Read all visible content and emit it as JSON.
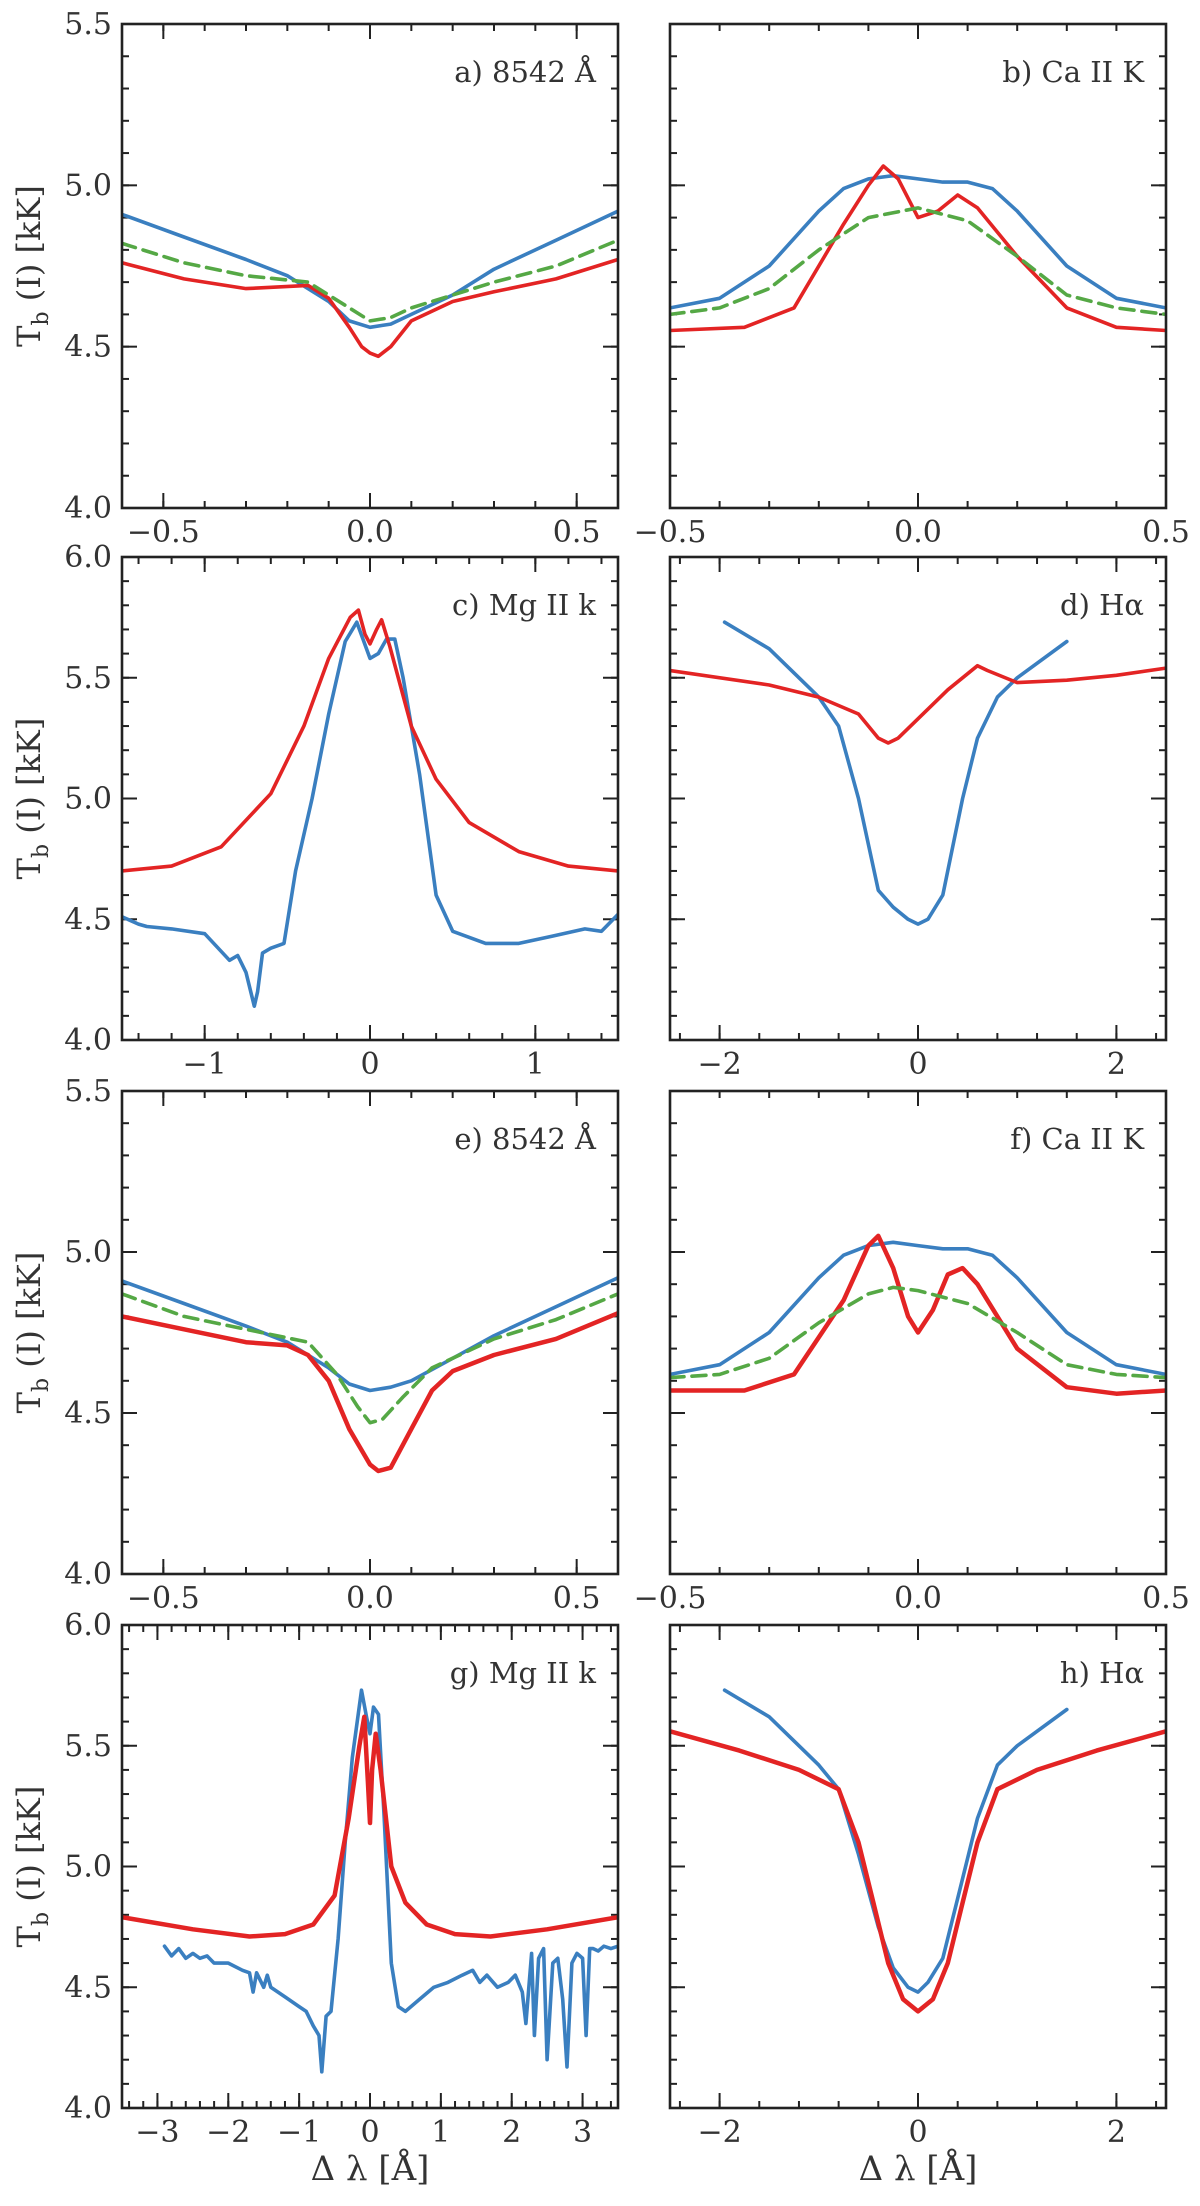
{
  "figure": {
    "y_label": [
      "T",
      "b",
      " (I) [kK]"
    ],
    "x_label": "Δ λ [Å]"
  },
  "colors": {
    "blue": "#3a7fc0",
    "red": "#e32424",
    "green": "#55a845"
  },
  "chart_data": [
    {
      "id": "a",
      "title": "a) 8542 Å",
      "type": "line",
      "xlim": [
        -0.6,
        0.6
      ],
      "ylim": [
        4.0,
        5.5
      ],
      "xticks": [
        -0.5,
        0.0,
        0.5
      ],
      "yticks": [
        4.0,
        4.5,
        5.0,
        5.5
      ],
      "x_tick_labels_shown": true,
      "y_tick_labels_shown": true,
      "series": [
        {
          "color": "blue",
          "dash": false,
          "x": [
            -0.6,
            -0.45,
            -0.3,
            -0.2,
            -0.1,
            -0.05,
            0.0,
            0.05,
            0.1,
            0.2,
            0.3,
            0.45,
            0.6
          ],
          "y": [
            4.91,
            4.84,
            4.77,
            4.72,
            4.64,
            4.58,
            4.56,
            4.57,
            4.6,
            4.66,
            4.74,
            4.83,
            4.92
          ]
        },
        {
          "color": "red",
          "dash": false,
          "x": [
            -0.6,
            -0.45,
            -0.3,
            -0.15,
            -0.1,
            -0.05,
            -0.02,
            0.0,
            0.02,
            0.05,
            0.1,
            0.2,
            0.3,
            0.45,
            0.6
          ],
          "y": [
            4.76,
            4.71,
            4.68,
            4.69,
            4.65,
            4.56,
            4.5,
            4.48,
            4.47,
            4.5,
            4.58,
            4.64,
            4.67,
            4.71,
            4.77
          ]
        },
        {
          "color": "green",
          "dash": true,
          "x": [
            -0.6,
            -0.45,
            -0.3,
            -0.15,
            -0.05,
            0.0,
            0.05,
            0.1,
            0.2,
            0.3,
            0.45,
            0.6
          ],
          "y": [
            4.82,
            4.76,
            4.72,
            4.7,
            4.62,
            4.58,
            4.59,
            4.62,
            4.66,
            4.7,
            4.75,
            4.83
          ]
        }
      ]
    },
    {
      "id": "b",
      "title": "b) Ca II K",
      "type": "line",
      "xlim": [
        -0.5,
        0.5
      ],
      "ylim": [
        4.0,
        5.5
      ],
      "xticks": [
        -0.5,
        0.0,
        0.5
      ],
      "yticks": [
        4.0,
        4.5,
        5.0,
        5.5
      ],
      "x_tick_labels_shown": true,
      "y_tick_labels_shown": false,
      "series": [
        {
          "color": "blue",
          "dash": false,
          "x": [
            -0.5,
            -0.4,
            -0.3,
            -0.2,
            -0.15,
            -0.1,
            -0.05,
            0.0,
            0.05,
            0.1,
            0.15,
            0.2,
            0.3,
            0.4,
            0.5
          ],
          "y": [
            4.62,
            4.65,
            4.75,
            4.92,
            4.99,
            5.02,
            5.03,
            5.02,
            5.01,
            5.01,
            4.99,
            4.92,
            4.75,
            4.65,
            4.62
          ]
        },
        {
          "color": "red",
          "dash": false,
          "x": [
            -0.5,
            -0.35,
            -0.25,
            -0.15,
            -0.1,
            -0.07,
            -0.04,
            0.0,
            0.04,
            0.08,
            0.12,
            0.2,
            0.3,
            0.4,
            0.5
          ],
          "y": [
            4.55,
            4.56,
            4.62,
            4.88,
            5.0,
            5.06,
            5.02,
            4.9,
            4.92,
            4.97,
            4.93,
            4.78,
            4.62,
            4.56,
            4.55
          ]
        },
        {
          "color": "green",
          "dash": true,
          "x": [
            -0.5,
            -0.4,
            -0.3,
            -0.2,
            -0.1,
            0.0,
            0.1,
            0.2,
            0.3,
            0.4,
            0.5
          ],
          "y": [
            4.6,
            4.62,
            4.68,
            4.8,
            4.9,
            4.93,
            4.89,
            4.78,
            4.66,
            4.62,
            4.6
          ]
        }
      ]
    },
    {
      "id": "c",
      "title": "c) Mg II k",
      "type": "line",
      "xlim": [
        -1.5,
        1.5
      ],
      "ylim": [
        4.0,
        6.0
      ],
      "xticks": [
        -1,
        0,
        1
      ],
      "yticks": [
        4.0,
        4.5,
        5.0,
        5.5,
        6.0
      ],
      "x_tick_labels_shown": true,
      "y_tick_labels_shown": true,
      "series": [
        {
          "color": "blue",
          "dash": false,
          "x": [
            -1.5,
            -1.4,
            -1.35,
            -1.2,
            -1.0,
            -0.85,
            -0.8,
            -0.75,
            -0.7,
            -0.68,
            -0.65,
            -0.6,
            -0.52,
            -0.45,
            -0.35,
            -0.25,
            -0.15,
            -0.08,
            0.0,
            0.05,
            0.1,
            0.15,
            0.2,
            0.3,
            0.4,
            0.5,
            0.7,
            0.9,
            1.1,
            1.3,
            1.4,
            1.5
          ],
          "y": [
            4.51,
            4.48,
            4.47,
            4.46,
            4.44,
            4.33,
            4.35,
            4.28,
            4.14,
            4.2,
            4.36,
            4.38,
            4.4,
            4.7,
            5.0,
            5.35,
            5.65,
            5.73,
            5.58,
            5.6,
            5.66,
            5.66,
            5.5,
            5.1,
            4.6,
            4.45,
            4.4,
            4.4,
            4.43,
            4.46,
            4.45,
            4.52
          ]
        },
        {
          "color": "red",
          "dash": false,
          "x": [
            -1.5,
            -1.2,
            -0.9,
            -0.6,
            -0.4,
            -0.25,
            -0.12,
            -0.07,
            -0.03,
            0.0,
            0.04,
            0.07,
            0.12,
            0.25,
            0.4,
            0.6,
            0.9,
            1.2,
            1.5
          ],
          "y": [
            4.7,
            4.72,
            4.8,
            5.02,
            5.3,
            5.58,
            5.75,
            5.78,
            5.68,
            5.64,
            5.7,
            5.74,
            5.63,
            5.3,
            5.08,
            4.9,
            4.78,
            4.72,
            4.7
          ]
        }
      ]
    },
    {
      "id": "d",
      "title": "d) Hα",
      "type": "line",
      "xlim": [
        -2.5,
        2.5
      ],
      "ylim": [
        4.0,
        6.0
      ],
      "xticks": [
        -2,
        0,
        2
      ],
      "yticks": [
        4.0,
        4.5,
        5.0,
        5.5,
        6.0
      ],
      "x_tick_labels_shown": true,
      "y_tick_labels_shown": false,
      "series": [
        {
          "color": "blue",
          "dash": false,
          "x": [
            -1.95,
            -1.5,
            -1.0,
            -0.8,
            -0.6,
            -0.4,
            -0.25,
            -0.1,
            0.0,
            0.1,
            0.25,
            0.45,
            0.6,
            0.8,
            1.0,
            1.5
          ],
          "y": [
            5.73,
            5.62,
            5.42,
            5.3,
            5.0,
            4.62,
            4.55,
            4.5,
            4.48,
            4.5,
            4.6,
            5.0,
            5.25,
            5.42,
            5.5,
            5.65
          ]
        },
        {
          "color": "red",
          "dash": false,
          "x": [
            -2.5,
            -1.5,
            -1.0,
            -0.6,
            -0.4,
            -0.3,
            -0.2,
            0.0,
            0.3,
            0.6,
            0.7,
            1.0,
            1.5,
            2.0,
            2.5
          ],
          "y": [
            5.53,
            5.47,
            5.42,
            5.35,
            5.25,
            5.23,
            5.25,
            5.33,
            5.45,
            5.55,
            5.53,
            5.48,
            5.49,
            5.51,
            5.54
          ]
        }
      ]
    },
    {
      "id": "e",
      "title": "e) 8542 Å",
      "type": "line",
      "xlim": [
        -0.6,
        0.6
      ],
      "ylim": [
        4.0,
        5.5
      ],
      "xticks": [
        -0.5,
        0.0,
        0.5
      ],
      "yticks": [
        4.0,
        4.5,
        5.0,
        5.5
      ],
      "x_tick_labels_shown": true,
      "y_tick_labels_shown": true,
      "series": [
        {
          "color": "blue",
          "dash": false,
          "x": [
            -0.6,
            -0.45,
            -0.3,
            -0.2,
            -0.1,
            -0.05,
            0.0,
            0.05,
            0.1,
            0.2,
            0.3,
            0.45,
            0.6
          ],
          "y": [
            4.91,
            4.84,
            4.77,
            4.72,
            4.64,
            4.59,
            4.57,
            4.58,
            4.6,
            4.67,
            4.74,
            4.83,
            4.92
          ]
        },
        {
          "color": "red",
          "dash": false,
          "x": [
            -0.6,
            -0.45,
            -0.3,
            -0.2,
            -0.15,
            -0.1,
            -0.05,
            0.0,
            0.02,
            0.05,
            0.1,
            0.15,
            0.2,
            0.3,
            0.45,
            0.6
          ],
          "y": [
            4.8,
            4.76,
            4.72,
            4.71,
            4.68,
            4.6,
            4.45,
            4.34,
            4.32,
            4.33,
            4.45,
            4.57,
            4.63,
            4.68,
            4.73,
            4.81
          ]
        },
        {
          "color": "green",
          "dash": true,
          "x": [
            -0.6,
            -0.45,
            -0.3,
            -0.15,
            -0.08,
            -0.03,
            0.0,
            0.03,
            0.08,
            0.15,
            0.3,
            0.45,
            0.6
          ],
          "y": [
            4.87,
            4.8,
            4.76,
            4.72,
            4.62,
            4.52,
            4.47,
            4.48,
            4.55,
            4.64,
            4.73,
            4.79,
            4.87
          ]
        }
      ]
    },
    {
      "id": "f",
      "title": "f) Ca II K",
      "type": "line",
      "xlim": [
        -0.5,
        0.5
      ],
      "ylim": [
        4.0,
        5.5
      ],
      "xticks": [
        -0.5,
        0.0,
        0.5
      ],
      "yticks": [
        4.0,
        4.5,
        5.0,
        5.5
      ],
      "x_tick_labels_shown": true,
      "y_tick_labels_shown": false,
      "series": [
        {
          "color": "blue",
          "dash": false,
          "x": [
            -0.5,
            -0.4,
            -0.3,
            -0.2,
            -0.15,
            -0.1,
            -0.05,
            0.0,
            0.05,
            0.1,
            0.15,
            0.2,
            0.3,
            0.4,
            0.5
          ],
          "y": [
            4.62,
            4.65,
            4.75,
            4.92,
            4.99,
            5.02,
            5.03,
            5.02,
            5.01,
            5.01,
            4.99,
            4.92,
            4.75,
            4.65,
            4.62
          ]
        },
        {
          "color": "red",
          "dash": false,
          "x": [
            -0.5,
            -0.35,
            -0.25,
            -0.15,
            -0.1,
            -0.08,
            -0.05,
            -0.02,
            0.0,
            0.03,
            0.06,
            0.09,
            0.12,
            0.2,
            0.3,
            0.4,
            0.5
          ],
          "y": [
            4.57,
            4.57,
            4.62,
            4.85,
            5.02,
            5.05,
            4.95,
            4.8,
            4.75,
            4.82,
            4.93,
            4.95,
            4.9,
            4.7,
            4.58,
            4.56,
            4.57
          ]
        },
        {
          "color": "green",
          "dash": true,
          "x": [
            -0.5,
            -0.4,
            -0.3,
            -0.2,
            -0.1,
            -0.05,
            0.0,
            0.05,
            0.1,
            0.2,
            0.3,
            0.4,
            0.5
          ],
          "y": [
            4.61,
            4.62,
            4.67,
            4.78,
            4.87,
            4.89,
            4.88,
            4.86,
            4.84,
            4.75,
            4.65,
            4.62,
            4.61
          ]
        }
      ]
    },
    {
      "id": "g",
      "title": "g) Mg II k",
      "type": "line",
      "xlim": [
        -3.5,
        3.5
      ],
      "ylim": [
        4.0,
        6.0
      ],
      "xticks": [
        -3,
        -2,
        -1,
        0,
        1,
        2,
        3
      ],
      "yticks": [
        4.0,
        4.5,
        5.0,
        5.5,
        6.0
      ],
      "x_tick_labels_shown": true,
      "y_tick_labels_shown": true,
      "series": [
        {
          "color": "blue",
          "dash": false,
          "x": [
            -2.9,
            -2.8,
            -2.7,
            -2.6,
            -2.5,
            -2.4,
            -2.3,
            -2.2,
            -2.0,
            -1.8,
            -1.7,
            -1.65,
            -1.6,
            -1.5,
            -1.45,
            -1.4,
            -1.2,
            -1.0,
            -0.9,
            -0.8,
            -0.72,
            -0.68,
            -0.62,
            -0.55,
            -0.45,
            -0.35,
            -0.25,
            -0.12,
            -0.05,
            0.0,
            0.05,
            0.12,
            0.2,
            0.3,
            0.4,
            0.5,
            0.7,
            0.9,
            1.1,
            1.3,
            1.45,
            1.55,
            1.65,
            1.8,
            1.95,
            2.05,
            2.15,
            2.2,
            2.28,
            2.32,
            2.38,
            2.45,
            2.5,
            2.58,
            2.65,
            2.72,
            2.78,
            2.85,
            2.92,
            3.0,
            3.05,
            3.1,
            3.15,
            3.22,
            3.3,
            3.4,
            3.5
          ],
          "y": [
            4.67,
            4.63,
            4.66,
            4.62,
            4.64,
            4.62,
            4.63,
            4.6,
            4.6,
            4.57,
            4.56,
            4.48,
            4.56,
            4.5,
            4.55,
            4.5,
            4.46,
            4.42,
            4.4,
            4.34,
            4.3,
            4.15,
            4.38,
            4.4,
            4.7,
            5.1,
            5.45,
            5.73,
            5.62,
            5.55,
            5.66,
            5.63,
            5.2,
            4.6,
            4.42,
            4.4,
            4.45,
            4.5,
            4.52,
            4.55,
            4.57,
            4.52,
            4.55,
            4.5,
            4.52,
            4.55,
            4.48,
            4.35,
            4.64,
            4.3,
            4.62,
            4.66,
            4.2,
            4.6,
            4.62,
            4.45,
            4.17,
            4.6,
            4.64,
            4.62,
            4.3,
            4.66,
            4.66,
            4.65,
            4.67,
            4.66,
            4.67
          ]
        },
        {
          "color": "red",
          "dash": false,
          "x": [
            -3.5,
            -2.5,
            -1.7,
            -1.2,
            -0.8,
            -0.5,
            -0.3,
            -0.15,
            -0.08,
            -0.03,
            0.0,
            0.03,
            0.08,
            0.15,
            0.3,
            0.5,
            0.8,
            1.2,
            1.7,
            2.5,
            3.5
          ],
          "y": [
            4.79,
            4.74,
            4.71,
            4.72,
            4.76,
            4.88,
            5.2,
            5.5,
            5.62,
            5.35,
            5.18,
            5.4,
            5.55,
            5.4,
            5.0,
            4.85,
            4.76,
            4.72,
            4.71,
            4.74,
            4.79
          ]
        }
      ]
    },
    {
      "id": "h",
      "title": "h) Hα",
      "type": "line",
      "xlim": [
        -2.5,
        2.5
      ],
      "ylim": [
        4.0,
        6.0
      ],
      "xticks": [
        -2,
        0,
        2
      ],
      "yticks": [
        4.0,
        4.5,
        5.0,
        5.5,
        6.0
      ],
      "x_tick_labels_shown": true,
      "y_tick_labels_shown": false,
      "series": [
        {
          "color": "blue",
          "dash": false,
          "x": [
            -1.95,
            -1.5,
            -1.0,
            -0.8,
            -0.6,
            -0.4,
            -0.25,
            -0.1,
            0.0,
            0.1,
            0.25,
            0.45,
            0.6,
            0.8,
            1.0,
            1.5
          ],
          "y": [
            5.73,
            5.62,
            5.42,
            5.32,
            5.05,
            4.75,
            4.58,
            4.5,
            4.48,
            4.52,
            4.62,
            4.95,
            5.2,
            5.42,
            5.5,
            5.65
          ]
        },
        {
          "color": "red",
          "dash": false,
          "x": [
            -2.5,
            -1.8,
            -1.2,
            -0.8,
            -0.6,
            -0.45,
            -0.3,
            -0.15,
            0.0,
            0.15,
            0.3,
            0.45,
            0.6,
            0.8,
            1.2,
            1.8,
            2.5
          ],
          "y": [
            5.56,
            5.48,
            5.4,
            5.32,
            5.1,
            4.85,
            4.6,
            4.45,
            4.4,
            4.45,
            4.6,
            4.85,
            5.1,
            5.32,
            5.4,
            5.48,
            5.56
          ]
        }
      ]
    }
  ]
}
